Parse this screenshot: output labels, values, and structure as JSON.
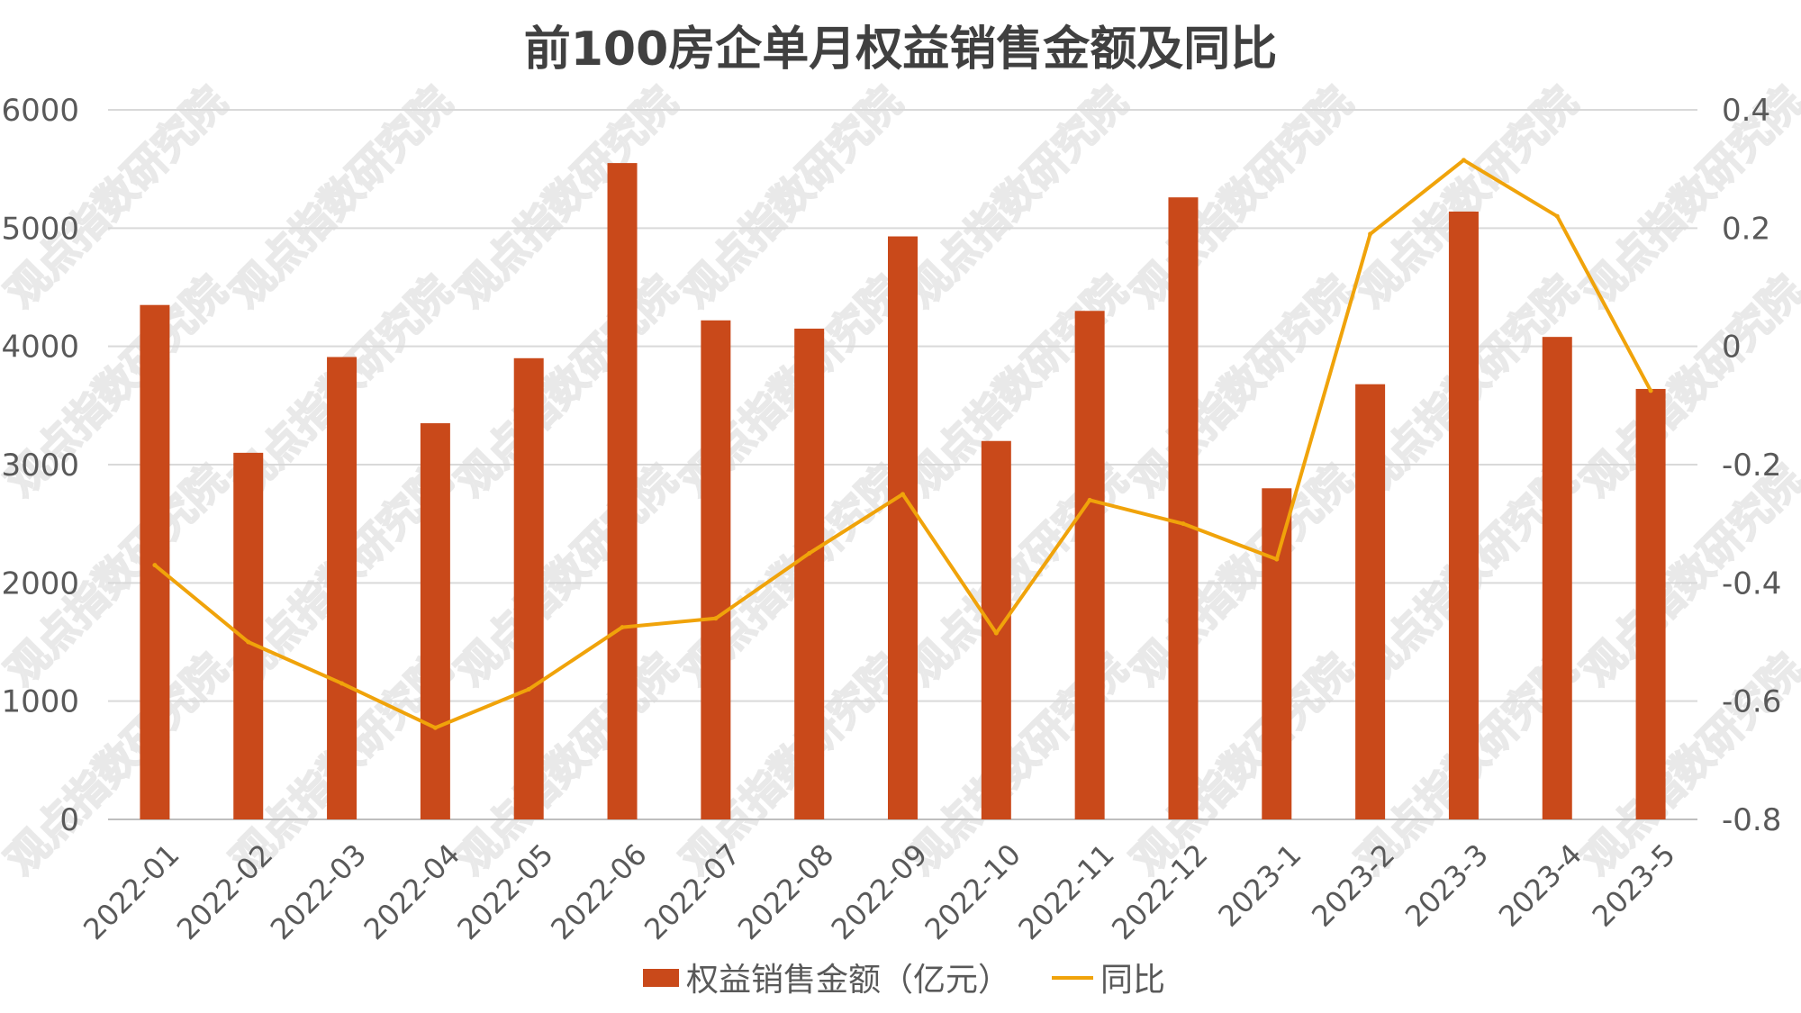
{
  "watermark_text": "观点指数研究院",
  "chart_data": {
    "type": "bar",
    "title": "前100房企单月权益销售金额及同比",
    "categories": [
      "2022-01",
      "2022-02",
      "2022-03",
      "2022-04",
      "2022-05",
      "2022-06",
      "2022-07",
      "2022-08",
      "2022-09",
      "2022-10",
      "2022-11",
      "2022-12",
      "2023-1",
      "2023-2",
      "2023-3",
      "2023-4",
      "2023-5"
    ],
    "series": [
      {
        "name": "权益销售金额（亿元）",
        "type": "bar",
        "axis": "left",
        "color": "#c9491a",
        "values": [
          4350,
          3100,
          3910,
          3350,
          3900,
          5550,
          4220,
          4150,
          4930,
          3200,
          4300,
          5260,
          2800,
          3680,
          5140,
          4080,
          3640
        ]
      },
      {
        "name": "同比",
        "type": "line",
        "axis": "right",
        "color": "#f0a30a",
        "values": [
          -0.37,
          -0.5,
          -0.57,
          -0.645,
          -0.58,
          -0.475,
          -0.46,
          -0.35,
          -0.25,
          -0.485,
          -0.26,
          -0.3,
          -0.36,
          0.19,
          0.315,
          0.22,
          -0.075
        ]
      }
    ],
    "y_left": {
      "min": 0,
      "max": 6000,
      "ticks": [
        "0",
        "1000",
        "2000",
        "3000",
        "4000",
        "5000",
        "6000"
      ]
    },
    "y_right": {
      "min": -0.8,
      "max": 0.4,
      "ticks": [
        "-0.8",
        "-0.6",
        "-0.4",
        "-0.2",
        "0",
        "0.2",
        "0.4"
      ]
    },
    "grid": true,
    "legend_position": "bottom"
  }
}
